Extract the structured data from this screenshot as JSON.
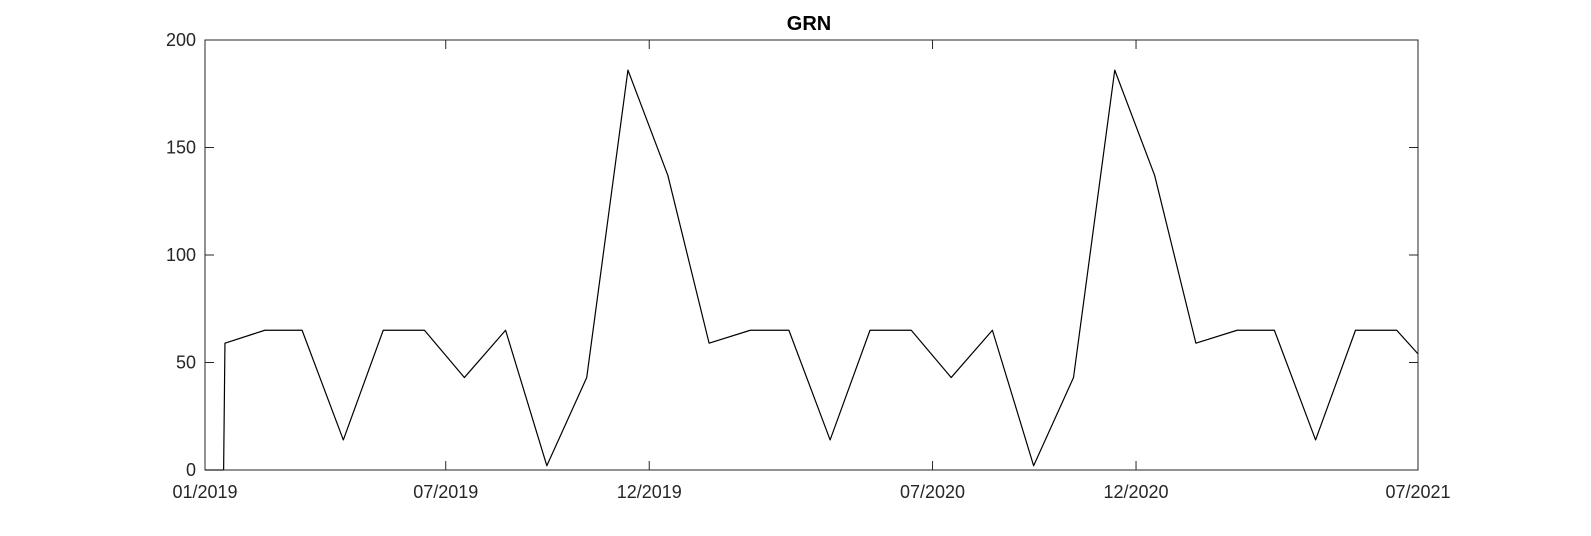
{
  "chart_data": {
    "type": "line",
    "title": "GRN",
    "xlabel": "",
    "ylabel": "",
    "x_type": "date",
    "xlim": [
      "2019-01-01",
      "2021-07-01"
    ],
    "ylim": [
      0,
      200
    ],
    "grid": false,
    "legend": "none",
    "xticks": [
      {
        "date": "2019-01-01",
        "label": "01/2019"
      },
      {
        "date": "2019-07-01",
        "label": "07/2019"
      },
      {
        "date": "2019-12-01",
        "label": "12/2019"
      },
      {
        "date": "2020-07-01",
        "label": "07/2020"
      },
      {
        "date": "2020-12-01",
        "label": "12/2020"
      },
      {
        "date": "2021-07-01",
        "label": "07/2021"
      }
    ],
    "yticks": [
      0,
      50,
      100,
      150,
      200
    ],
    "series": [
      {
        "color": "#000000",
        "points": [
          [
            "2019-01-01",
            0
          ],
          [
            "2019-01-15",
            0
          ],
          [
            "2019-01-16",
            59
          ],
          [
            "2019-02-15",
            65
          ],
          [
            "2019-03-15",
            65
          ],
          [
            "2019-04-15",
            14
          ],
          [
            "2019-05-15",
            65
          ],
          [
            "2019-06-15",
            65
          ],
          [
            "2019-07-15",
            43
          ],
          [
            "2019-08-15",
            65
          ],
          [
            "2019-09-15",
            2
          ],
          [
            "2019-10-15",
            43
          ],
          [
            "2019-11-15",
            186
          ],
          [
            "2019-12-15",
            137
          ],
          [
            "2020-01-15",
            59
          ],
          [
            "2020-02-15",
            65
          ],
          [
            "2020-03-15",
            65
          ],
          [
            "2020-04-15",
            14
          ],
          [
            "2020-05-15",
            65
          ],
          [
            "2020-06-15",
            65
          ],
          [
            "2020-07-15",
            43
          ],
          [
            "2020-08-15",
            65
          ],
          [
            "2020-09-15",
            2
          ],
          [
            "2020-10-15",
            43
          ],
          [
            "2020-11-15",
            186
          ],
          [
            "2020-12-15",
            137
          ],
          [
            "2021-01-15",
            59
          ],
          [
            "2021-02-15",
            65
          ],
          [
            "2021-03-15",
            65
          ],
          [
            "2021-04-15",
            14
          ],
          [
            "2021-05-15",
            65
          ],
          [
            "2021-06-15",
            65
          ],
          [
            "2021-07-01",
            54
          ]
        ]
      }
    ]
  }
}
